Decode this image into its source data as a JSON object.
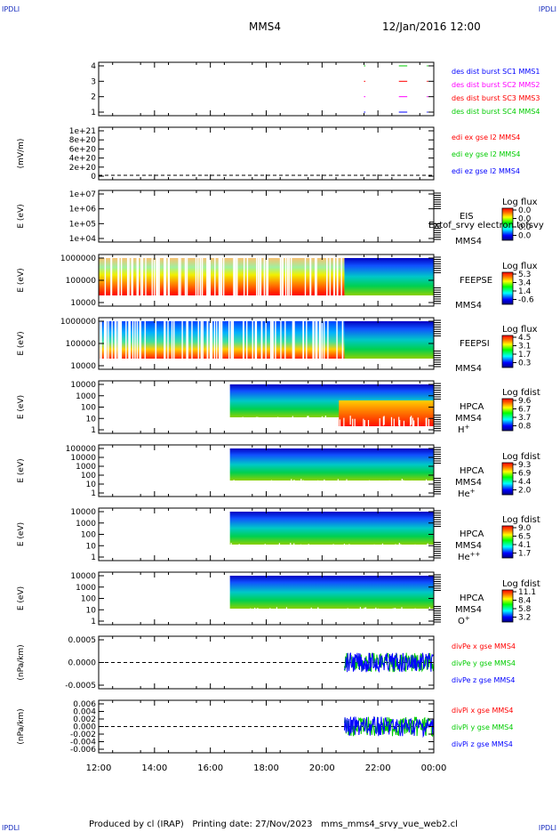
{
  "corner_tl": "IPDLI",
  "corner_tr": "IPDLI",
  "corner_bl": "IPDLI",
  "corner_br": "IPDLI",
  "title": "MMS4",
  "date": "12/Jan/2016 12:00",
  "footer": "Produced by cl (IRAP)   Printing date: 27/Nov/2023   mms_mms4_srvy_vue_web2.cl",
  "colors": {
    "black": "#000000",
    "red": "#ff0000",
    "green": "#00cc00",
    "blue": "#0000ff",
    "magenta": "#ff00ff"
  },
  "x_axis": {
    "ticks": [
      "12:00",
      "14:00",
      "16:00",
      "18:00",
      "20:00",
      "22:00",
      "00:00"
    ]
  },
  "chart_data": [
    {
      "type": "scatter",
      "panel": "burst",
      "yticks": [
        "4",
        "3",
        "2",
        "1"
      ],
      "ylim": [
        0.5,
        4.5
      ],
      "legend": [
        {
          "text": "des dist burst SC1 MMS1",
          "color": "#0000ff"
        },
        {
          "text": "des dist burst SC2 MMS2",
          "color": "#ff00ff"
        },
        {
          "text": "des dist burst SC3 MMS3",
          "color": "#ff0000"
        },
        {
          "text": "des dist burst SC4 MMS4",
          "color": "#00cc00"
        }
      ],
      "series": [
        {
          "name": "des dist burst SC1 MMS1",
          "color": "#0000ff",
          "y": 1,
          "segments": [
            [
              21.5,
              21.55
            ],
            [
              22.75,
              23.05
            ],
            [
              23.75,
              23.8
            ]
          ]
        },
        {
          "name": "des dist burst SC2 MMS2",
          "color": "#ff00ff",
          "y": 2,
          "segments": [
            [
              21.5,
              21.55
            ],
            [
              22.75,
              23.05
            ],
            [
              23.75,
              23.8
            ]
          ]
        },
        {
          "name": "des dist burst SC3 MMS3",
          "color": "#ff0000",
          "y": 3,
          "segments": [
            [
              21.5,
              21.55
            ],
            [
              22.75,
              23.05
            ],
            [
              23.75,
              23.8
            ]
          ]
        },
        {
          "name": "des dist burst SC4 MMS4",
          "color": "#00cc00",
          "y": 4,
          "segments": [
            [
              21.5,
              21.55
            ],
            [
              22.75,
              23.05
            ],
            [
              23.75,
              23.8
            ]
          ]
        }
      ]
    },
    {
      "type": "line",
      "panel": "edi",
      "ylabel": "(mV/m)",
      "yticks": [
        "1e+21",
        "8e+20",
        "6e+20",
        "4e+20",
        "2e+20",
        "0"
      ],
      "ylim": [
        0,
        1e+21
      ],
      "legend": [
        {
          "text": "edi ex gse l2 MMS4",
          "color": "#ff0000"
        },
        {
          "text": "edi ey gse l2 MMS4",
          "color": "#00cc00"
        },
        {
          "text": "edi ez gse l2 MMS4",
          "color": "#0000ff"
        }
      ]
    },
    {
      "type": "heatmap",
      "panel": "eis",
      "ylabel": "E (eV)",
      "yticks": [
        "1e+07",
        "1e+06",
        "1e+05",
        "1e+04"
      ],
      "label": "EIS",
      "label2": "MMS4",
      "overlap_text": "Extof_srvy electron tofsvy",
      "cbar_title": "Log flux",
      "cbar_ticks": [
        "0.0",
        "0.0",
        "0.0",
        "0.0"
      ]
    },
    {
      "type": "heatmap",
      "panel": "feepse",
      "ylabel": "E (eV)",
      "yticks": [
        "1000000",
        "100000",
        "10000"
      ],
      "label": "FEEPSE",
      "label2": "MMS4",
      "cbar_title": "Log flux",
      "cbar_ticks": [
        "5.3",
        "3.4",
        "1.4",
        "-0.6"
      ],
      "x_start": 12.0,
      "x_change": 20.8
    },
    {
      "type": "heatmap",
      "panel": "feepsi",
      "ylabel": "E (eV)",
      "yticks": [
        "1000000",
        "100000",
        "10000"
      ],
      "label": "FEEPSI",
      "label2": "MMS4",
      "cbar_title": "Log flux",
      "cbar_ticks": [
        "4.5",
        "3.1",
        "1.7",
        "0.3"
      ],
      "x_start": 12.0,
      "x_change": 20.8
    },
    {
      "type": "heatmap",
      "panel": "hpca-h",
      "ylabel": "E (eV)",
      "yticks": [
        "10000",
        "1000",
        "100",
        "10",
        "1"
      ],
      "label": "HPCA",
      "label2": "MMS4",
      "species": "H",
      "species_sup": "+",
      "cbar_title": "Log fdist",
      "cbar_ticks": [
        "9.6",
        "6.7",
        "3.7",
        "0.8"
      ],
      "x_start": 16.7
    },
    {
      "type": "heatmap",
      "panel": "hpca-he",
      "ylabel": "E (eV)",
      "yticks": [
        "100000",
        "10000",
        "1000",
        "100",
        "10",
        "1"
      ],
      "label": "HPCA",
      "label2": "MMS4",
      "species": "He",
      "species_sup": "+",
      "cbar_title": "Log fdist",
      "cbar_ticks": [
        "9.3",
        "6.9",
        "4.4",
        "2.0"
      ],
      "x_start": 16.7
    },
    {
      "type": "heatmap",
      "panel": "hpca-hepp",
      "ylabel": "E (eV)",
      "yticks": [
        "10000",
        "1000",
        "100",
        "10",
        "1"
      ],
      "label": "HPCA",
      "label2": "MMS4",
      "species": "He",
      "species_sup": "++",
      "cbar_title": "Log fdist",
      "cbar_ticks": [
        "9.0",
        "6.5",
        "4.1",
        "1.7"
      ],
      "x_start": 16.7
    },
    {
      "type": "heatmap",
      "panel": "hpca-o",
      "ylabel": "E (eV)",
      "yticks": [
        "10000",
        "1000",
        "100",
        "10",
        "1"
      ],
      "label": "HPCA",
      "label2": "MMS4",
      "species": "O",
      "species_sup": "+",
      "cbar_title": "Log fdist",
      "cbar_ticks": [
        "11.1",
        "8.4",
        "5.8",
        "3.2"
      ],
      "x_start": 16.7
    },
    {
      "type": "line",
      "panel": "divpe",
      "ylabel": "(nPa/km)",
      "yticks": [
        "0.0005",
        "0.0000",
        "-0.0005"
      ],
      "ylim": [
        -0.0009,
        0.0009
      ],
      "x_start": 20.8,
      "legend": [
        {
          "text": "divPe x gse MMS4",
          "color": "#ff0000"
        },
        {
          "text": "divPe y gse MMS4",
          "color": "#00cc00"
        },
        {
          "text": "divPe z gse MMS4",
          "color": "#0000ff"
        }
      ]
    },
    {
      "type": "line",
      "panel": "divpi",
      "ylabel": "(nPa/km)",
      "yticks": [
        "0.006",
        "0.004",
        "0.002",
        "0.000",
        "-0.002",
        "-0.004",
        "-0.006"
      ],
      "ylim": [
        -0.0065,
        0.0065
      ],
      "x_start": 20.8,
      "legend": [
        {
          "text": "divPi x gse MMS4",
          "color": "#ff0000"
        },
        {
          "text": "divPi y gse MMS4",
          "color": "#00cc00"
        },
        {
          "text": "divPi z gse MMS4",
          "color": "#0000ff"
        }
      ]
    }
  ]
}
